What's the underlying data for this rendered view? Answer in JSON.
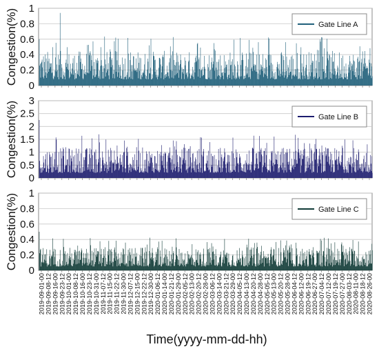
{
  "chart_data": [
    {
      "type": "bar",
      "legend": "Gate Line A",
      "legend_position": "top-right",
      "ylabel": "Congestion(%)",
      "ylim": [
        0,
        1
      ],
      "yticks": [
        "0",
        "0.2",
        "0.4",
        "0.6",
        "0.8",
        "1"
      ],
      "color": "#1f5f7a",
      "typical_range": [
        0.08,
        0.45
      ],
      "notable_peaks": [
        {
          "x": "2019-09-23-12",
          "y": 0.94
        },
        {
          "x": "2019-12-18-00",
          "y": 0.78
        },
        {
          "x": "2020-05-25-00",
          "y": 0.65
        },
        {
          "x": "2020-08-13-00",
          "y": 0.6
        }
      ]
    },
    {
      "type": "bar",
      "legend": "Gate Line B",
      "legend_position": "top-right",
      "ylabel": "Congestion(%)",
      "ylim": [
        0,
        3
      ],
      "yticks": [
        "0",
        "0.5",
        "1",
        "1.5",
        "2",
        "2.5",
        "3"
      ],
      "color": "#1c1c6e",
      "typical_range": [
        0.2,
        1.2
      ],
      "notable_peaks": [
        {
          "x": "2019-09-03-00",
          "y": 2.3
        },
        {
          "x": "2020-01-26-00",
          "y": 2.1
        },
        {
          "x": "2020-02-01-00",
          "y": 1.95
        },
        {
          "x": "2020-08-25-00",
          "y": 2.25
        }
      ]
    },
    {
      "type": "bar",
      "legend": "Gate Line C",
      "legend_position": "top-right",
      "ylabel": "Congestion(%)",
      "ylim": [
        0,
        1
      ],
      "yticks": [
        "0",
        "0.2",
        "0.4",
        "0.6",
        "0.8",
        "1"
      ],
      "color": "#0f3a36",
      "typical_range": [
        0.05,
        0.3
      ],
      "notable_peaks": [
        {
          "x": "2019-10-14-00",
          "y": 0.65
        },
        {
          "x": "2020-03-10-00",
          "y": 0.6
        },
        {
          "x": "2020-02-07-00",
          "y": 0.5
        }
      ]
    }
  ],
  "shared_x": {
    "xlabel": "Time(yyyy-mm-dd-hh)",
    "ticks": [
      "2019-09-01-00",
      "2019-09-08-12",
      "2019-09-16-00",
      "2019-09-23-12",
      "2019-10-01-00",
      "2019-10-08-12",
      "2019-10-16-00",
      "2019-10-23-12",
      "2019-10-31-00",
      "2019-11-07-12",
      "2019-11-15-00",
      "2019-11-22-12",
      "2019-11-30-00",
      "2019-12-07-12",
      "2019-12-15-00",
      "2019-12-22-12",
      "2019-12-30-00",
      "2020-01-06-12",
      "2020-01-14-00",
      "2020-01-21-12",
      "2020-01-29-00",
      "2020-02-05-12",
      "2020-02-13-00",
      "2020-02-20-12",
      "2020-02-28-00",
      "2020-03-06-12",
      "2020-03-14-00",
      "2020-03-21-12",
      "2020-03-29-00",
      "2020-04-05-12",
      "2020-04-13-00",
      "2020-04-20-12",
      "2020-04-28-00",
      "2020-05-05-12",
      "2020-05-13-00",
      "2020-05-20-12",
      "2020-05-28-00",
      "2020-06-04-12",
      "2020-06-12-00",
      "2020-06-19-12",
      "2020-06-27-00",
      "2020-07-04-12",
      "2020-07-12-00",
      "2020-07-19-12",
      "2020-07-27-00",
      "2020-08-03-12",
      "2020-08-11-00",
      "2020-08-18-12",
      "2020-08-26-00"
    ]
  }
}
